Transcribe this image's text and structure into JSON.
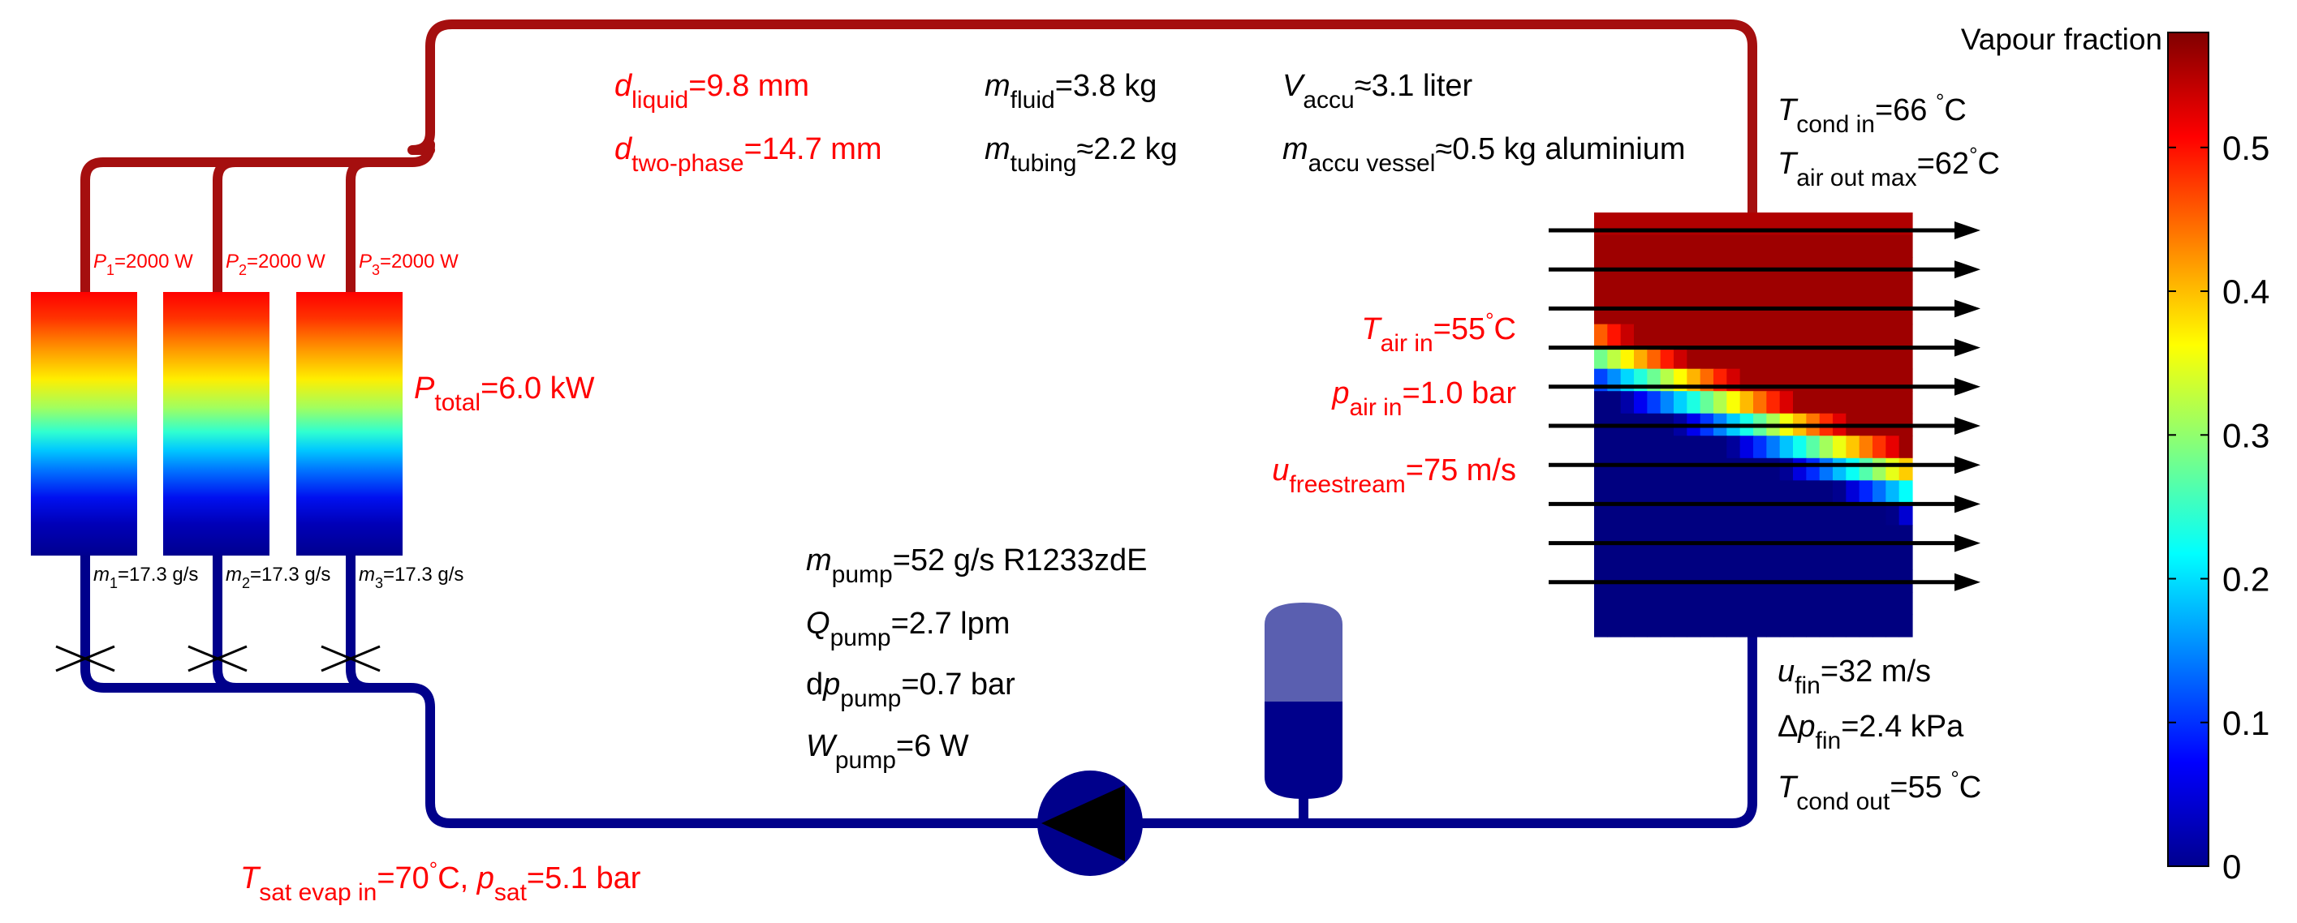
{
  "colors": {
    "red": "#ff0000",
    "black": "#000000",
    "hot_pipe": "#a50f0f",
    "cold_pipe": "#00008b",
    "accumulator_vapour": "#5a5fb0",
    "accumulator_liquid": "#00008b",
    "pump_body": "#00008b"
  },
  "icons": {
    "pump": "pump-icon",
    "accumulator": "accumulator-icon",
    "expansion_valve": "expansion-valve-icon",
    "air_flow": "arrow-right-icon"
  },
  "tubing": {
    "liquid": {
      "sym": "d",
      "sub": "liquid",
      "tail": "=9.8 mm"
    },
    "two_phase": {
      "sym": "d",
      "sub": "two-phase",
      "tail": "=14.7 mm"
    }
  },
  "mass": {
    "fluid": {
      "sym": "m",
      "sub": "fluid",
      "tail": "=3.8 kg"
    },
    "tubing": {
      "sym": "m",
      "sub": "tubing",
      "tail": "≈2.2 kg"
    }
  },
  "accumulator": {
    "volume": {
      "sym": "V",
      "sub": "accu",
      "tail": "≈3.1 liter"
    },
    "vessel": {
      "sym": "m",
      "sub": "accu vessel",
      "tail": "≈0.5 kg aluminium"
    }
  },
  "evaporators": [
    {
      "p_sym": "P",
      "p_sub": "1",
      "p_tail": "=2000 W",
      "m_sym": "m",
      "m_sub": "1",
      "m_tail": "=17.3 g/s"
    },
    {
      "p_sym": "P",
      "p_sub": "2",
      "p_tail": "=2000 W",
      "m_sym": "m",
      "m_sub": "2",
      "m_tail": "=17.3 g/s"
    },
    {
      "p_sym": "P",
      "p_sub": "3",
      "p_tail": "=2000 W",
      "m_sym": "m",
      "m_sub": "3",
      "m_tail": "=17.3 g/s"
    }
  ],
  "total_power": {
    "sym": "P",
    "sub": "total",
    "tail": "=6.0 kW"
  },
  "evaporator_inlet": {
    "sym": "T",
    "sub": "sat evap in",
    "mid": "=70",
    "deg": "°",
    "unit": "C, ",
    "sym2": "p",
    "sub2": "sat",
    "tail": "=5.1 bar"
  },
  "pump": {
    "mass_flow": {
      "sym": "m",
      "sub": "pump",
      "tail": "=52 g/s R1233zdE"
    },
    "vol_flow": {
      "sym": "Q",
      "sub": "pump",
      "tail": "=2.7 lpm"
    },
    "pressure": {
      "pre": "d",
      "sym": "p",
      "sub": "pump",
      "tail": "=0.7 bar"
    },
    "power": {
      "sym": "W",
      "sub": "pump",
      "tail": "=6 W"
    }
  },
  "air": {
    "t_in": {
      "sym": "T",
      "sub": "air in",
      "mid": "=55",
      "deg": "°",
      "unit": "C"
    },
    "p_in": {
      "sym": "p",
      "sub": "air in",
      "tail": "=1.0 bar"
    },
    "u_free": {
      "sym": "u",
      "sub": "freestream",
      "tail": "=75 m/s"
    }
  },
  "condenser": {
    "t_in": {
      "sym": "T",
      "sub": "cond in",
      "mid": "=66 ",
      "deg": "°",
      "unit": "C"
    },
    "t_air_out": {
      "sym": "T",
      "sub": "air out max",
      "mid": "=62",
      "deg": "°",
      "unit": "C"
    },
    "u_fin": {
      "sym": "u",
      "sub": "fin",
      "tail": "=32 m/s"
    },
    "dp_fin": {
      "pre": "Δ",
      "sym": "p",
      "sub": "fin",
      "tail": "=2.4 kPa"
    },
    "t_out": {
      "sym": "T",
      "sub": "cond out",
      "mid": "=55 ",
      "deg": "°",
      "unit": "C"
    }
  },
  "colorbar": {
    "label": "Vapour fraction",
    "range": [
      0,
      0.58
    ],
    "ticks": [
      0,
      0.1,
      0.2,
      0.3,
      0.4,
      0.5
    ],
    "tick_labels": [
      "0",
      "0.1",
      "0.2",
      "0.3",
      "0.4",
      "0.5"
    ],
    "colormap": "jet"
  },
  "condenser_field": {
    "rows": 19,
    "cols": 24,
    "max_vapour_fraction": 0.58,
    "air_flow_arrows": 10
  }
}
